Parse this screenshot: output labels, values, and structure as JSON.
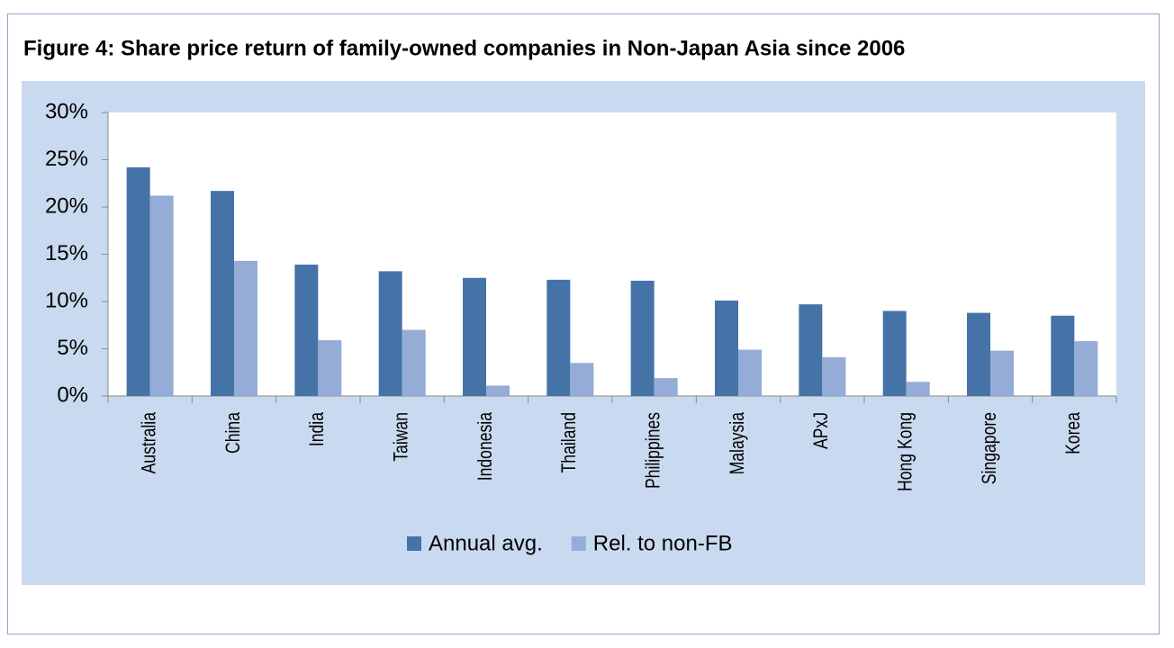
{
  "chart_data": {
    "type": "bar",
    "title": "Figure 4: Share price return of family-owned companies in Non-Japan Asia since 2006",
    "categories": [
      "Australia",
      "China",
      "India",
      "Taiwan",
      "Indonesia",
      "Thailand",
      "Philippines",
      "Malaysia",
      "APxJ",
      "Hong Kong",
      "Singapore",
      "Korea"
    ],
    "series": [
      {
        "name": "Annual avg.",
        "color": "#4573a8",
        "values": [
          24.2,
          21.7,
          13.9,
          13.2,
          12.5,
          12.3,
          12.2,
          10.1,
          9.7,
          9.0,
          8.8,
          8.5
        ]
      },
      {
        "name": "Rel. to non-FB",
        "color": "#95acd6",
        "values": [
          21.2,
          14.3,
          5.9,
          7.0,
          1.1,
          3.5,
          1.9,
          4.9,
          4.1,
          1.5,
          4.8,
          5.8
        ]
      }
    ],
    "ylim": [
      0,
      30
    ],
    "yticks": [
      {
        "value": 0,
        "label": "0%"
      },
      {
        "value": 5,
        "label": "5%"
      },
      {
        "value": 10,
        "label": "10%"
      },
      {
        "value": 15,
        "label": "15%"
      },
      {
        "value": 20,
        "label": "20%"
      },
      {
        "value": 25,
        "label": "25%"
      },
      {
        "value": 30,
        "label": "30%"
      }
    ],
    "grid": false,
    "legend": "bottom"
  }
}
